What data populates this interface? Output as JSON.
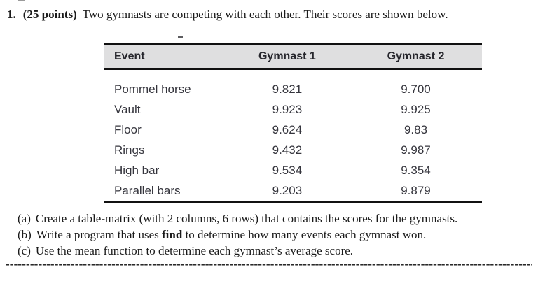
{
  "title": {
    "number": "1.",
    "points": "(25 points)",
    "text": "Two gymnasts are competing with each other. Their scores are shown below."
  },
  "table": {
    "columns": [
      "Event",
      "Gymnast 1",
      "Gymnast 2"
    ],
    "rows": [
      {
        "event": "Pommel horse",
        "g1": "9.821",
        "g2": "9.700"
      },
      {
        "event": "Vault",
        "g1": "9.923",
        "g2": "9.925"
      },
      {
        "event": "Floor",
        "g1": "9.624",
        "g2": "9.83"
      },
      {
        "event": "Rings",
        "g1": "9.432",
        "g2": "9.987"
      },
      {
        "event": "High bar",
        "g1": "9.534",
        "g2": "9.354"
      },
      {
        "event": "Parallel bars",
        "g1": "9.203",
        "g2": "9.879"
      }
    ],
    "header_bg": "#dfdfe0",
    "border_color": "#111111"
  },
  "questions": [
    {
      "label": "(a)",
      "pre": "Create a table-matrix (with 2 columns, 6 rows) that contains the scores for the gymnasts.",
      "bold": "",
      "post": ""
    },
    {
      "label": "(b)",
      "pre": "Write a program that uses ",
      "bold": "find",
      "post": " to determine how many events each gymnast won."
    },
    {
      "label": "(c)",
      "pre": "Use the mean function to determine each gymnast’s average score.",
      "bold": "",
      "post": ""
    }
  ],
  "divider": "----------------------------------------------------------------------------------------------------------------------------------"
}
